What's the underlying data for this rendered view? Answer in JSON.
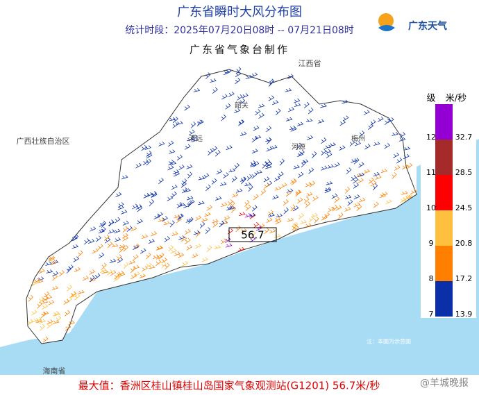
{
  "header": {
    "title": "广东省瞬时大风分布图",
    "period": "统计时段：2025年07月20日08时 -- 07月21日08时",
    "producer": "广东省气象台制作",
    "logo": "广东天气"
  },
  "map": {
    "labels": [
      "广西壮族自治区",
      "江西省",
      "海南省",
      "清远",
      "韶关",
      "河源",
      "梅州"
    ],
    "max_marker": "56.7",
    "note": "注：本图为示意图"
  },
  "legend": {
    "level_header": "级",
    "unit_header": "米/秒",
    "levels": [
      {
        "level": 12,
        "speed": 32.7,
        "color": "#9400d3"
      },
      {
        "level": 11,
        "speed": 28.5,
        "color": "#a52a2a"
      },
      {
        "level": 10,
        "speed": 24.5,
        "color": "#ff0000"
      },
      {
        "level": 9,
        "speed": 20.8,
        "color": "#ffc040"
      },
      {
        "level": 8,
        "speed": 17.2,
        "color": "#ff8000"
      },
      {
        "level": 7,
        "speed": 13.9,
        "color": "#0a2fa8"
      }
    ]
  },
  "footer": {
    "max_text": "最大值：香洲区桂山镇桂山岛国家气象观测站(G1201) 56.7米/秒",
    "watermark": "@羊城晚报"
  }
}
